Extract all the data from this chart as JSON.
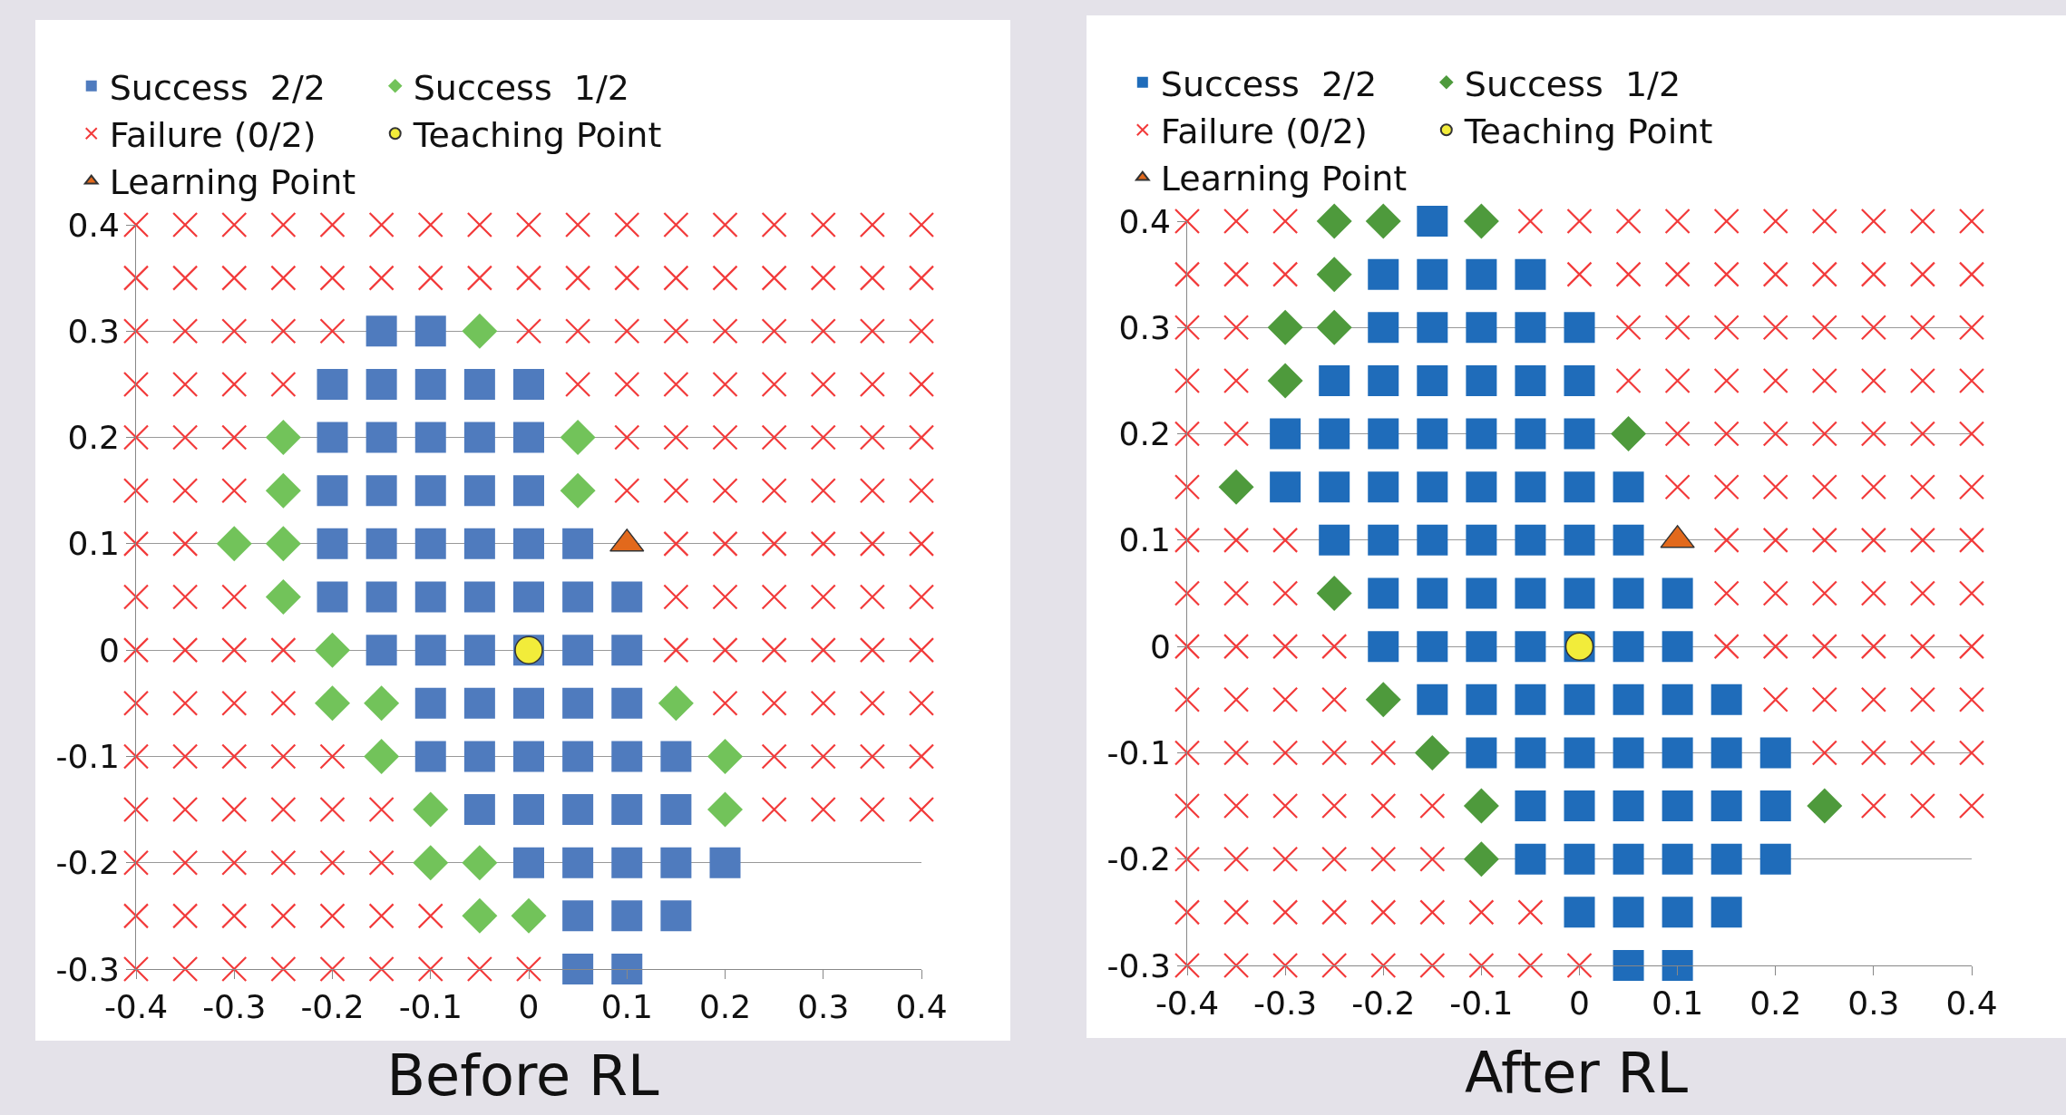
{
  "chart_data": [
    {
      "type": "scatter",
      "title": "Before RL",
      "xlim": [
        -0.4,
        0.4
      ],
      "ylim": [
        -0.3,
        0.4
      ],
      "xticks": [
        -0.4,
        -0.3,
        -0.2,
        -0.1,
        0,
        0.1,
        0.2,
        0.3,
        0.4
      ],
      "yticks": [
        -0.3,
        -0.2,
        -0.1,
        0,
        0.1,
        0.2,
        0.3,
        0.4
      ],
      "grid": "y",
      "legend": "top",
      "series": [
        {
          "name": "Success  2/2",
          "marker": "square",
          "color": "#4f7bbe",
          "x": [
            -0.15,
            -0.1,
            -0.2,
            -0.15,
            -0.1,
            -0.05,
            0,
            -0.2,
            -0.15,
            -0.1,
            -0.05,
            0,
            -0.2,
            -0.15,
            -0.1,
            -0.05,
            0,
            -0.2,
            -0.15,
            -0.1,
            -0.05,
            0,
            0.05,
            -0.2,
            -0.15,
            -0.1,
            -0.05,
            0,
            0.05,
            0.1,
            -0.15,
            -0.1,
            -0.05,
            0,
            0.05,
            0.1,
            -0.1,
            -0.05,
            0,
            0.05,
            0.1,
            -0.1,
            -0.05,
            0,
            0.05,
            0.1,
            0.15,
            -0.05,
            0,
            0.05,
            0.1,
            0.15,
            0,
            0.05,
            0.1,
            0.15,
            0.2,
            0.05,
            0.1,
            0.15,
            0.05,
            0.1
          ],
          "values": [
            0.3,
            0.3,
            0.25,
            0.25,
            0.25,
            0.25,
            0.25,
            0.2,
            0.2,
            0.2,
            0.2,
            0.2,
            0.15,
            0.15,
            0.15,
            0.15,
            0.15,
            0.1,
            0.1,
            0.1,
            0.1,
            0.1,
            0.1,
            0.05,
            0.05,
            0.05,
            0.05,
            0.05,
            0.05,
            0.05,
            0,
            0,
            0,
            0,
            0,
            0,
            -0.05,
            -0.05,
            -0.05,
            -0.05,
            -0.05,
            -0.1,
            -0.1,
            -0.1,
            -0.1,
            -0.1,
            -0.1,
            -0.15,
            -0.15,
            -0.15,
            -0.15,
            -0.15,
            -0.2,
            -0.2,
            -0.2,
            -0.2,
            -0.2,
            -0.25,
            -0.25,
            -0.25,
            -0.3,
            -0.3
          ]
        },
        {
          "name": "Success  1/2",
          "marker": "diamond",
          "color": "#72c35a",
          "x": [
            -0.05,
            -0.25,
            0.05,
            -0.25,
            0.05,
            -0.3,
            -0.25,
            -0.25,
            -0.2,
            -0.2,
            -0.15,
            0.15,
            -0.15,
            0.2,
            -0.1,
            0.2,
            -0.1,
            -0.05,
            -0.05,
            0
          ],
          "values": [
            0.3,
            0.2,
            0.2,
            0.15,
            0.15,
            0.1,
            0.1,
            0.05,
            0,
            -0.05,
            -0.05,
            -0.05,
            -0.1,
            -0.1,
            -0.15,
            -0.15,
            -0.2,
            -0.2,
            -0.25,
            -0.25
          ]
        },
        {
          "name": "Failure (0/2)",
          "marker": "cross",
          "color": "#f23a3a",
          "x": [
            -0.4,
            -0.35,
            -0.3,
            -0.25,
            -0.2,
            -0.15,
            -0.1,
            -0.05,
            0,
            0.05,
            0.1,
            0.15,
            0.2,
            0.25,
            0.3,
            0.35,
            0.4,
            -0.4,
            -0.35,
            -0.3,
            -0.25,
            -0.2,
            -0.15,
            -0.1,
            -0.05,
            0,
            0.05,
            0.1,
            0.15,
            0.2,
            0.25,
            0.3,
            0.35,
            0.4,
            -0.4,
            -0.35,
            -0.3,
            -0.25,
            -0.2,
            0,
            0.05,
            0.1,
            0.15,
            0.2,
            0.25,
            0.3,
            0.35,
            0.4,
            -0.4,
            -0.35,
            -0.3,
            -0.25,
            0.05,
            0.1,
            0.15,
            0.2,
            0.25,
            0.3,
            0.35,
            0.4,
            -0.4,
            -0.35,
            -0.3,
            0.1,
            0.15,
            0.2,
            0.25,
            0.3,
            0.35,
            0.4,
            -0.4,
            -0.35,
            -0.3,
            0.1,
            0.15,
            0.2,
            0.25,
            0.3,
            0.35,
            0.4,
            -0.4,
            -0.35,
            0.15,
            0.2,
            0.25,
            0.3,
            0.35,
            0.4,
            -0.4,
            -0.35,
            -0.3,
            0.15,
            0.2,
            0.25,
            0.3,
            0.35,
            0.4,
            -0.4,
            -0.35,
            -0.3,
            -0.25,
            0.15,
            0.2,
            0.25,
            0.3,
            0.35,
            0.4,
            -0.4,
            -0.35,
            -0.3,
            -0.25,
            0.2,
            0.25,
            0.3,
            0.35,
            0.4,
            -0.4,
            -0.35,
            -0.3,
            -0.25,
            -0.2,
            0.25,
            0.3,
            0.35,
            0.4,
            -0.4,
            -0.35,
            -0.3,
            -0.25,
            -0.2,
            -0.15,
            0.25,
            0.3,
            0.35,
            0.4,
            -0.4,
            -0.35,
            -0.3,
            -0.25,
            -0.2,
            -0.15,
            -0.4,
            -0.35,
            -0.3,
            -0.25,
            -0.2,
            -0.15,
            -0.1,
            -0.4,
            -0.35,
            -0.3,
            -0.25,
            -0.2,
            -0.15,
            -0.1,
            -0.05,
            0
          ],
          "values": [
            0.4,
            0.4,
            0.4,
            0.4,
            0.4,
            0.4,
            0.4,
            0.4,
            0.4,
            0.4,
            0.4,
            0.4,
            0.4,
            0.4,
            0.4,
            0.4,
            0.4,
            0.35,
            0.35,
            0.35,
            0.35,
            0.35,
            0.35,
            0.35,
            0.35,
            0.35,
            0.35,
            0.35,
            0.35,
            0.35,
            0.35,
            0.35,
            0.35,
            0.35,
            0.3,
            0.3,
            0.3,
            0.3,
            0.3,
            0.3,
            0.3,
            0.3,
            0.3,
            0.3,
            0.3,
            0.3,
            0.3,
            0.3,
            0.25,
            0.25,
            0.25,
            0.25,
            0.25,
            0.25,
            0.25,
            0.25,
            0.25,
            0.25,
            0.25,
            0.25,
            0.2,
            0.2,
            0.2,
            0.2,
            0.2,
            0.2,
            0.2,
            0.2,
            0.2,
            0.2,
            0.15,
            0.15,
            0.15,
            0.15,
            0.15,
            0.15,
            0.15,
            0.15,
            0.15,
            0.15,
            0.1,
            0.1,
            0.1,
            0.1,
            0.1,
            0.1,
            0.1,
            0.1,
            0.05,
            0.05,
            0.05,
            0.05,
            0.05,
            0.05,
            0.05,
            0.05,
            0.05,
            0,
            0,
            0,
            0,
            0,
            0,
            0,
            0,
            0,
            0,
            -0.05,
            -0.05,
            -0.05,
            -0.05,
            -0.05,
            -0.05,
            -0.05,
            -0.05,
            -0.05,
            -0.1,
            -0.1,
            -0.1,
            -0.1,
            -0.1,
            -0.1,
            -0.1,
            -0.1,
            -0.1,
            -0.15,
            -0.15,
            -0.15,
            -0.15,
            -0.15,
            -0.15,
            -0.15,
            -0.15,
            -0.15,
            -0.15,
            -0.2,
            -0.2,
            -0.2,
            -0.2,
            -0.2,
            -0.2,
            -0.25,
            -0.25,
            -0.25,
            -0.25,
            -0.25,
            -0.25,
            -0.25,
            -0.3,
            -0.3,
            -0.3,
            -0.3,
            -0.3,
            -0.3,
            -0.3,
            -0.3,
            -0.3
          ]
        },
        {
          "name": "Teaching Point",
          "marker": "circle",
          "color": "#f2ec3a",
          "x": [
            0
          ],
          "values": [
            0
          ]
        },
        {
          "name": "Learning Point",
          "marker": "triangle",
          "color": "#e2691c",
          "x": [
            0.1
          ],
          "values": [
            0.1
          ]
        }
      ]
    },
    {
      "type": "scatter",
      "title": "After RL",
      "xlim": [
        -0.4,
        0.4
      ],
      "ylim": [
        -0.3,
        0.4
      ],
      "xticks": [
        -0.4,
        -0.3,
        -0.2,
        -0.1,
        0,
        0.1,
        0.2,
        0.3,
        0.4
      ],
      "yticks": [
        -0.3,
        -0.2,
        -0.1,
        0,
        0.1,
        0.2,
        0.3,
        0.4
      ],
      "grid": "y",
      "legend": "top",
      "series": [
        {
          "name": "Success  2/2",
          "marker": "square",
          "color": "#1f6cba",
          "x": [
            -0.15,
            -0.2,
            -0.15,
            -0.1,
            -0.05,
            -0.2,
            -0.15,
            -0.1,
            -0.05,
            0,
            -0.25,
            -0.2,
            -0.15,
            -0.1,
            -0.05,
            0,
            -0.3,
            -0.25,
            -0.2,
            -0.15,
            -0.1,
            -0.05,
            0,
            -0.3,
            -0.25,
            -0.2,
            -0.15,
            -0.1,
            -0.05,
            0,
            0.05,
            -0.25,
            -0.2,
            -0.15,
            -0.1,
            -0.05,
            0,
            0.05,
            -0.2,
            -0.15,
            -0.1,
            -0.05,
            0,
            0.05,
            0.1,
            -0.2,
            -0.15,
            -0.1,
            -0.05,
            0,
            0.05,
            0.1,
            -0.15,
            -0.1,
            -0.05,
            0,
            0.05,
            0.1,
            0.15,
            -0.1,
            -0.05,
            0,
            0.05,
            0.1,
            0.15,
            0.2,
            -0.05,
            0,
            0.05,
            0.1,
            0.15,
            0.2,
            -0.05,
            0,
            0.05,
            0.1,
            0.15,
            0.2,
            0,
            0.05,
            0.1,
            0.15,
            0.05,
            0.1
          ],
          "values": [
            0.4,
            0.35,
            0.35,
            0.35,
            0.35,
            0.3,
            0.3,
            0.3,
            0.3,
            0.3,
            0.25,
            0.25,
            0.25,
            0.25,
            0.25,
            0.25,
            0.2,
            0.2,
            0.2,
            0.2,
            0.2,
            0.2,
            0.2,
            0.15,
            0.15,
            0.15,
            0.15,
            0.15,
            0.15,
            0.15,
            0.15,
            0.1,
            0.1,
            0.1,
            0.1,
            0.1,
            0.1,
            0.1,
            0.05,
            0.05,
            0.05,
            0.05,
            0.05,
            0.05,
            0.05,
            0,
            0,
            0,
            0,
            0,
            0,
            0,
            -0.05,
            -0.05,
            -0.05,
            -0.05,
            -0.05,
            -0.05,
            -0.05,
            -0.1,
            -0.1,
            -0.1,
            -0.1,
            -0.1,
            -0.1,
            -0.1,
            -0.15,
            -0.15,
            -0.15,
            -0.15,
            -0.15,
            -0.15,
            -0.2,
            -0.2,
            -0.2,
            -0.2,
            -0.2,
            -0.2,
            -0.25,
            -0.25,
            -0.25,
            -0.25,
            -0.3,
            -0.3
          ]
        },
        {
          "name": "Success  1/2",
          "marker": "diamond",
          "color": "#4e9a3c",
          "x": [
            -0.25,
            -0.2,
            -0.1,
            -0.25,
            -0.3,
            -0.25,
            -0.3,
            0.05,
            -0.35,
            -0.25,
            -0.2,
            -0.15,
            -0.1,
            0.25,
            -0.1
          ],
          "values": [
            0.4,
            0.4,
            0.4,
            0.35,
            0.3,
            0.3,
            0.25,
            0.2,
            0.15,
            0.05,
            -0.05,
            -0.1,
            -0.15,
            -0.15,
            -0.2
          ]
        },
        {
          "name": "Failure (0/2)",
          "marker": "cross",
          "color": "#f23a3a",
          "x": [
            -0.4,
            -0.35,
            -0.3,
            -0.05,
            0,
            0.05,
            0.1,
            0.15,
            0.2,
            0.25,
            0.3,
            0.35,
            0.4,
            -0.4,
            -0.35,
            -0.3,
            0,
            0.05,
            0.1,
            0.15,
            0.2,
            0.25,
            0.3,
            0.35,
            0.4,
            -0.4,
            -0.35,
            0.05,
            0.1,
            0.15,
            0.2,
            0.25,
            0.3,
            0.35,
            0.4,
            -0.4,
            -0.35,
            0.05,
            0.1,
            0.15,
            0.2,
            0.25,
            0.3,
            0.35,
            0.4,
            -0.4,
            -0.35,
            0.1,
            0.15,
            0.2,
            0.25,
            0.3,
            0.35,
            0.4,
            -0.4,
            0.1,
            0.15,
            0.2,
            0.25,
            0.3,
            0.35,
            0.4,
            -0.4,
            -0.35,
            -0.3,
            0.15,
            0.2,
            0.25,
            0.3,
            0.35,
            0.4,
            -0.4,
            -0.35,
            -0.3,
            0.15,
            0.2,
            0.25,
            0.3,
            0.35,
            0.4,
            -0.4,
            -0.35,
            -0.3,
            -0.25,
            0.15,
            0.2,
            0.25,
            0.3,
            0.35,
            0.4,
            -0.4,
            -0.35,
            -0.3,
            -0.25,
            0.2,
            0.25,
            0.3,
            0.35,
            0.4,
            -0.4,
            -0.35,
            -0.3,
            -0.25,
            -0.2,
            0.25,
            0.3,
            0.35,
            0.4,
            -0.4,
            -0.35,
            -0.3,
            -0.25,
            -0.2,
            -0.15,
            0.3,
            0.35,
            0.4,
            -0.4,
            -0.35,
            -0.3,
            -0.25,
            -0.2,
            -0.15,
            -0.4,
            -0.35,
            -0.3,
            -0.25,
            -0.2,
            -0.15,
            -0.1,
            -0.05,
            -0.4,
            -0.35,
            -0.3,
            -0.25,
            -0.2,
            -0.15,
            -0.1,
            -0.05,
            0
          ],
          "values": [
            0.4,
            0.4,
            0.4,
            0.4,
            0.4,
            0.4,
            0.4,
            0.4,
            0.4,
            0.4,
            0.4,
            0.4,
            0.4,
            0.35,
            0.35,
            0.35,
            0.35,
            0.35,
            0.35,
            0.35,
            0.35,
            0.35,
            0.35,
            0.35,
            0.35,
            0.3,
            0.3,
            0.3,
            0.3,
            0.3,
            0.3,
            0.3,
            0.3,
            0.3,
            0.3,
            0.25,
            0.25,
            0.25,
            0.25,
            0.25,
            0.25,
            0.25,
            0.25,
            0.25,
            0.25,
            0.2,
            0.2,
            0.2,
            0.2,
            0.2,
            0.2,
            0.2,
            0.2,
            0.2,
            0.15,
            0.15,
            0.15,
            0.15,
            0.15,
            0.15,
            0.15,
            0.15,
            0.1,
            0.1,
            0.1,
            0.1,
            0.1,
            0.1,
            0.1,
            0.1,
            0.1,
            0.05,
            0.05,
            0.05,
            0.05,
            0.05,
            0.05,
            0.05,
            0.05,
            0.05,
            0,
            0,
            0,
            0,
            0,
            0,
            0,
            0,
            0,
            0,
            -0.05,
            -0.05,
            -0.05,
            -0.05,
            -0.05,
            -0.05,
            -0.05,
            -0.05,
            -0.05,
            -0.1,
            -0.1,
            -0.1,
            -0.1,
            -0.1,
            -0.1,
            -0.1,
            -0.1,
            -0.1,
            -0.15,
            -0.15,
            -0.15,
            -0.15,
            -0.15,
            -0.15,
            -0.15,
            -0.15,
            -0.15,
            -0.2,
            -0.2,
            -0.2,
            -0.2,
            -0.2,
            -0.2,
            -0.25,
            -0.25,
            -0.25,
            -0.25,
            -0.25,
            -0.25,
            -0.25,
            -0.25,
            -0.3,
            -0.3,
            -0.3,
            -0.3,
            -0.3,
            -0.3,
            -0.3,
            -0.3,
            -0.3
          ]
        },
        {
          "name": "Teaching Point",
          "marker": "circle",
          "color": "#f2ec3a",
          "x": [
            0
          ],
          "values": [
            0
          ]
        },
        {
          "name": "Learning Point",
          "marker": "triangle",
          "color": "#e2691c",
          "x": [
            0.1
          ],
          "values": [
            0.1
          ]
        }
      ]
    }
  ]
}
